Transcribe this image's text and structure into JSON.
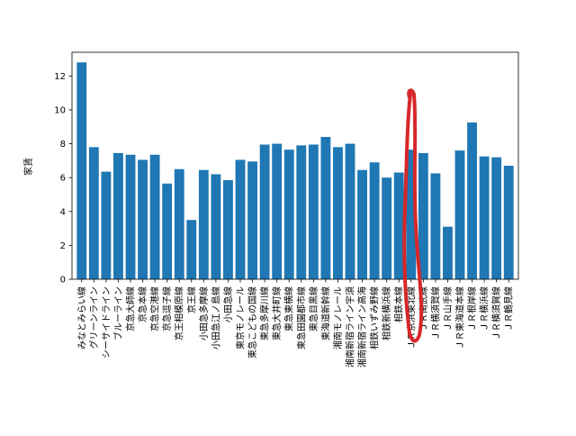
{
  "chart_data": {
    "type": "bar",
    "ylabel": "家賃",
    "ylim": [
      0,
      13.4
    ],
    "yticks": [
      0,
      2,
      4,
      6,
      8,
      10,
      12
    ],
    "grid": false,
    "bar_color": "#1f77b4",
    "annotation": {
      "kind": "hand-drawn-ellipse",
      "color": "#d62728",
      "around_categories": [
        "ＪＲ京浜東北線",
        "ＪＲ南武線"
      ]
    },
    "categories": [
      "みなとみらい線",
      "グリーンライン",
      "シーサイドライン",
      "ブルーライン",
      "京急大師線",
      "京急本線",
      "京急空港線",
      "京急逗子線",
      "京王相模原線",
      "京王線",
      "小田急多摩線",
      "小田急江ノ島線",
      "小田急線",
      "東京モノレール",
      "東急こどもの国線",
      "東急多摩川線",
      "東急大井町線",
      "東急東横線",
      "東急田園都市線",
      "東急目黒線",
      "東海道新幹線",
      "湘南モノレール",
      "湘南新宿ライン宇須",
      "湘南新宿ライン高海",
      "相鉄いずみ野線",
      "相鉄新横浜線",
      "相鉄本線",
      "ＪＲ京浜東北線",
      "ＪＲ南武線",
      "ＪＲ横須賀線",
      "ＪＲ山手線",
      "ＪＲ東海道本線",
      "ＪＲ根岸線",
      "ＪＲ横浜線",
      "ＪＲ横須賀線",
      "ＪＲ鶴見線"
    ],
    "values": [
      12.8,
      7.8,
      6.35,
      7.45,
      7.35,
      7.05,
      7.35,
      5.65,
      6.5,
      3.5,
      6.45,
      6.2,
      5.85,
      7.05,
      6.95,
      7.95,
      8.0,
      7.65,
      7.9,
      7.95,
      8.4,
      7.8,
      8.0,
      6.45,
      6.9,
      6.0,
      6.3,
      7.65,
      7.45,
      6.25,
      3.1,
      7.6,
      9.25,
      7.25,
      7.2,
      6.7
    ]
  }
}
